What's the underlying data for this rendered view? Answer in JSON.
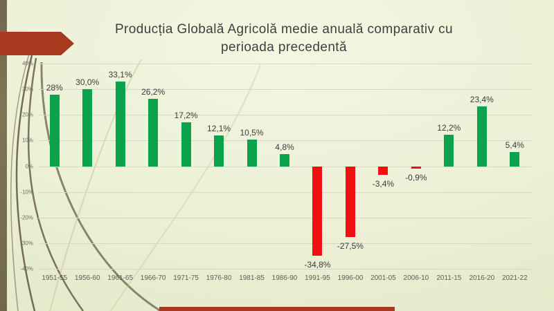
{
  "slide": {
    "title_line1": "Producția Globală Agricolă medie anuală comparativ cu",
    "title_line2": "perioada precedentă"
  },
  "colors": {
    "positive_bar": "#0BA24E",
    "negative_bar": "#F20F0F",
    "accent_red": "#A6391E",
    "olive_strip": "#7D7557",
    "gridline": "#D6D7C7",
    "title_text": "#3F3F3F",
    "value_text": "#3C3C3C",
    "axis_text": "#5D5D55",
    "ytick_text": "#6E6E63",
    "bg_center": "#F4F6E2",
    "bg_edge": "#DFE5C3"
  },
  "chart_data": {
    "type": "bar",
    "title": "Producția Globală Agricolă medie anuală comparativ cu perioada precedentă",
    "categories": [
      "1951-55",
      "1956-60",
      "1961-65",
      "1966-70",
      "1971-75",
      "1976-80",
      "1981-85",
      "1986-90",
      "1991-95",
      "1996-00",
      "2001-05",
      "2006-10",
      "2011-15",
      "2016-20",
      "2021-22"
    ],
    "values": [
      28,
      30.0,
      33.1,
      26.2,
      17.2,
      12.1,
      10.5,
      4.8,
      -34.8,
      -27.5,
      -3.4,
      -0.9,
      12.2,
      23.4,
      5.4
    ],
    "data_labels": [
      "28%",
      "30,0%",
      "33,1%",
      "26,2%",
      "17,2%",
      "12,1%",
      "10,5%",
      "4,8%",
      "-34,8%",
      "-27,5%",
      "-3,4%",
      "-0,9%",
      "12,2%",
      "23,4%",
      "5,4%"
    ],
    "y_ticks": [
      "40%",
      "30%",
      "20%",
      "10%",
      "0%",
      "-10%",
      "-20%",
      "-30%",
      "-40%"
    ],
    "ylim": [
      -40,
      40
    ],
    "xlabel": "",
    "ylabel": "",
    "grid": true,
    "legend": false,
    "positive_color": "#0BA24E",
    "negative_color": "#F20F0F"
  }
}
